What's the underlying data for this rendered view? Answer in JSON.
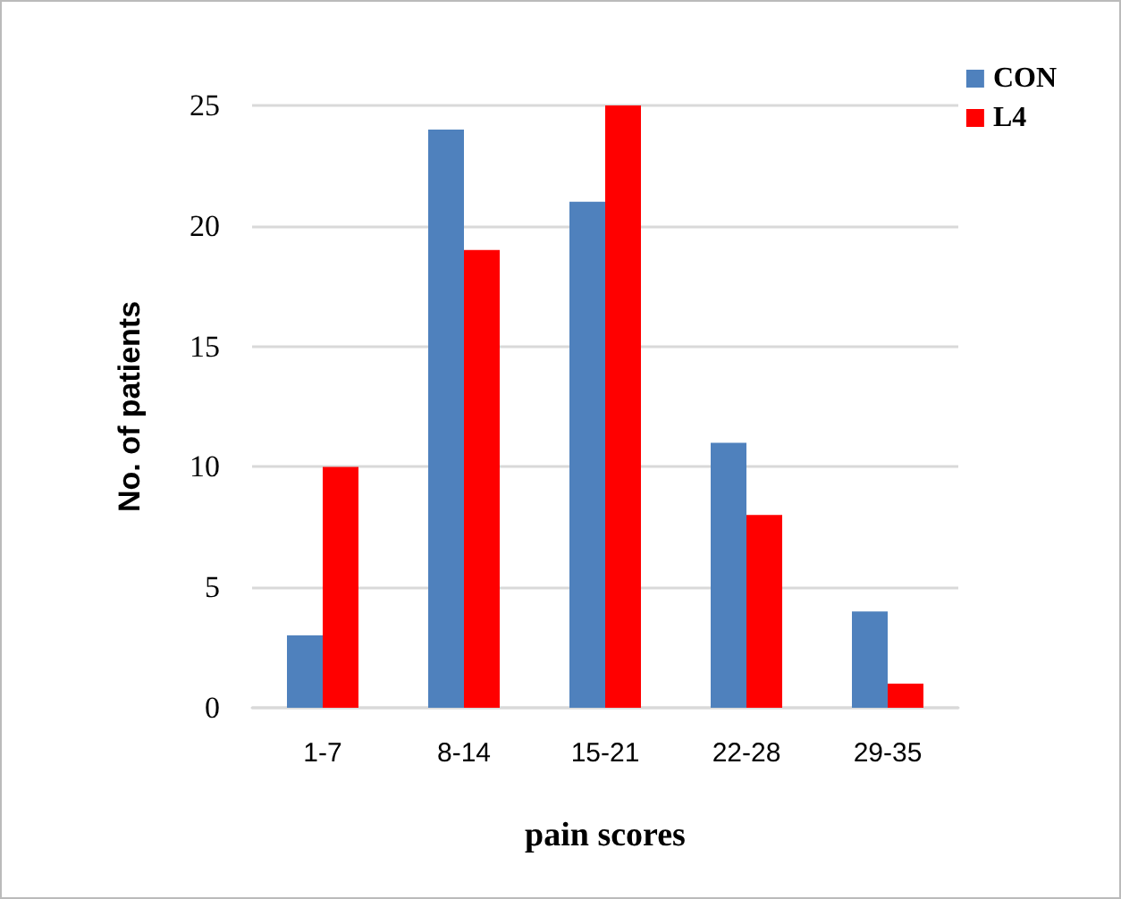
{
  "chart_data": {
    "type": "bar",
    "xlabel": "pain scores",
    "ylabel": "No. of patients",
    "categories": [
      "1-7",
      "8-14",
      "15-21",
      "22-28",
      "29-35"
    ],
    "series": [
      {
        "name": "CON",
        "color": "#4f81bd",
        "values": [
          3,
          24,
          21,
          11,
          4
        ]
      },
      {
        "name": "L4",
        "color": "#ff0000",
        "values": [
          10,
          19,
          25,
          8,
          1
        ]
      }
    ],
    "ylim": [
      0,
      25
    ],
    "yticks": [
      0,
      5,
      10,
      15,
      20,
      25
    ],
    "grid": "y",
    "legend": "top right"
  }
}
